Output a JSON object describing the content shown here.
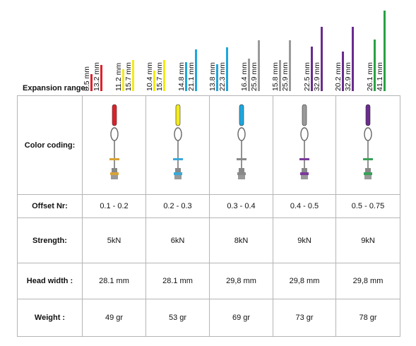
{
  "expansion": {
    "label": "Expansion range:",
    "ranges": [
      {
        "min": "8.5 mm",
        "max": "13.2 mm",
        "min_value": 8.5,
        "max_value": 13.2,
        "color": "#e0202a"
      },
      {
        "min": "11.2 mm",
        "max": "15.7 mm",
        "min_value": 11.2,
        "max_value": 15.7,
        "color": "#f2ea1c"
      },
      {
        "min": "10.4 mm",
        "max": "15.7 mm",
        "min_value": 10.4,
        "max_value": 15.7,
        "color": "#f2ea1c"
      },
      {
        "min": "14.8 mm",
        "max": "21.1 mm",
        "min_value": 14.8,
        "max_value": 21.1,
        "color": "#1fa6dd"
      },
      {
        "min": "13.8 mm",
        "max": "22.3 mm",
        "min_value": 13.8,
        "max_value": 22.3,
        "color": "#1fa6dd"
      },
      {
        "min": "16.4 mm",
        "max": "25.9 mm",
        "min_value": 16.4,
        "max_value": 25.9,
        "color": "#9a9a9a"
      },
      {
        "min": "15.8 mm",
        "max": "25.9 mm",
        "min_value": 15.8,
        "max_value": 25.9,
        "color": "#9a9a9a"
      },
      {
        "min": "22.5 mm",
        "max": "32.9 mm",
        "min_value": 22.5,
        "max_value": 32.9,
        "color": "#6a2b8e"
      },
      {
        "min": "20.2 mm",
        "max": "32.9 mm",
        "min_value": 20.2,
        "max_value": 32.9,
        "color": "#6a2b8e"
      },
      {
        "min": "26.1 mm",
        "max": "41.1 mm",
        "min_value": 26.1,
        "max_value": 41.1,
        "color": "#2aa144"
      }
    ]
  },
  "table": {
    "row_labels": {
      "color": "Color coding:",
      "offset": "Offset Nr:",
      "strength": "Strength:",
      "head_width": "Head width :",
      "weight": "Weight :"
    },
    "products": [
      {
        "color": "#e0202a",
        "head_color": "#d9a336",
        "offset": "0.1 - 0.2",
        "strength": "5kN",
        "head_width": "28.1 mm",
        "weight": "49 gr"
      },
      {
        "color": "#f2ea1c",
        "head_color": "#3aa9d8",
        "offset": "0.2 - 0.3",
        "strength": "6kN",
        "head_width": "28.1 mm",
        "weight": "53 gr"
      },
      {
        "color": "#1fa6dd",
        "head_color": "#8a8a8a",
        "offset": "0.3 - 0.4",
        "strength": "8kN",
        "head_width": "29,8 mm",
        "weight": "69 gr"
      },
      {
        "color": "#9a9a9a",
        "head_color": "#7b3a9a",
        "offset": "0.4 - 0.5",
        "strength": "9kN",
        "head_width": "29,8 mm",
        "weight": "73 gr"
      },
      {
        "color": "#6a2b8e",
        "head_color": "#3aa05a",
        "offset": "0.5 - 0.75",
        "strength": "9kN",
        "head_width": "29,8 mm",
        "weight": "78 gr"
      }
    ]
  }
}
